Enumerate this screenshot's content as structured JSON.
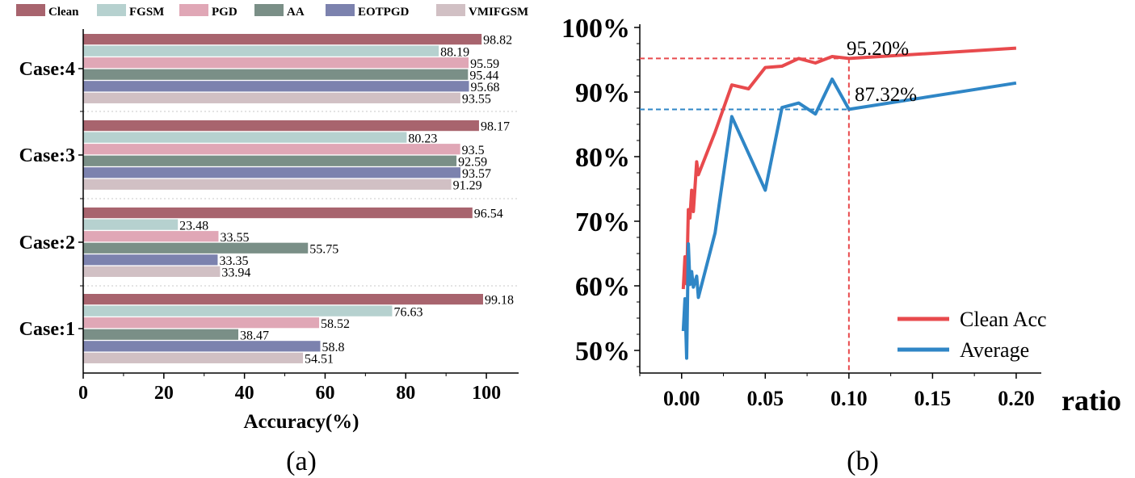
{
  "chart_data": [
    {
      "type": "bar",
      "orientation": "horizontal",
      "panel_label": "(a)",
      "categories": [
        "Case:4",
        "Case:3",
        "Case:2",
        "Case:1"
      ],
      "series": [
        {
          "name": "Clean",
          "color": "#a8646e",
          "values": [
            98.82,
            98.17,
            96.54,
            99.18
          ],
          "labels": [
            "98.82",
            "98.17",
            "96.54",
            "99.18"
          ]
        },
        {
          "name": "FGSM",
          "color": "#b6d1cf",
          "values": [
            88.19,
            80.23,
            23.48,
            76.63
          ],
          "labels": [
            "88.19",
            "80.23",
            "23.48",
            "76.63"
          ]
        },
        {
          "name": "PGD",
          "color": "#e0a7b6",
          "values": [
            95.59,
            93.5,
            33.55,
            58.52
          ],
          "labels": [
            "95.59",
            "93.5",
            "33.55",
            "58.52"
          ]
        },
        {
          "name": "AA",
          "color": "#7a8f87",
          "values": [
            95.44,
            92.59,
            55.75,
            38.47
          ],
          "labels": [
            "95.44",
            "92.59",
            "55.75",
            "38.47"
          ]
        },
        {
          "name": "EOTPGD",
          "color": "#7c82ae",
          "values": [
            95.68,
            93.57,
            33.35,
            58.8
          ],
          "labels": [
            "95.68",
            "93.57",
            "33.35",
            "58.8"
          ]
        },
        {
          "name": "VMIFGSM",
          "color": "#d1c0c4",
          "values": [
            93.55,
            91.29,
            33.94,
            54.51
          ],
          "labels": [
            "93.55",
            "91.29",
            "33.94",
            "54.51"
          ]
        }
      ],
      "xlabel": "Accuracy(%)",
      "xlim": [
        0,
        108
      ],
      "xticks": [
        0,
        20,
        40,
        60,
        80,
        100
      ],
      "xtick_labels": [
        "0",
        "20",
        "40",
        "60",
        "80",
        "100"
      ],
      "legend_position": "top"
    },
    {
      "type": "line",
      "panel_label": "(b)",
      "xlabel": "ratio",
      "xlim": [
        -0.025,
        0.215
      ],
      "ylim": [
        0.465,
        1.005
      ],
      "xticks": [
        0.0,
        0.05,
        0.1,
        0.15,
        0.2
      ],
      "xtick_labels": [
        "0.00",
        "0.05",
        "0.10",
        "0.15",
        "0.20"
      ],
      "yticks": [
        0.5,
        0.6,
        0.7,
        0.8,
        0.9,
        1.0
      ],
      "ytick_labels": [
        "50%",
        "60%",
        "70%",
        "80%",
        "90%",
        "100%"
      ],
      "series": [
        {
          "name": "Clean Acc",
          "color": "#e84a4d",
          "x": [
            0.001,
            0.002,
            0.003,
            0.004,
            0.005,
            0.006,
            0.007,
            0.008,
            0.009,
            0.01,
            0.02,
            0.03,
            0.04,
            0.05,
            0.06,
            0.07,
            0.08,
            0.09,
            0.1,
            0.2
          ],
          "y": [
            0.595,
            0.645,
            0.603,
            0.718,
            0.705,
            0.748,
            0.715,
            0.752,
            0.792,
            0.772,
            0.838,
            0.911,
            0.905,
            0.938,
            0.94,
            0.952,
            0.945,
            0.955,
            0.952,
            0.968
          ]
        },
        {
          "name": "Average",
          "color": "#2f86c6",
          "x": [
            0.001,
            0.002,
            0.003,
            0.004,
            0.005,
            0.006,
            0.007,
            0.008,
            0.009,
            0.01,
            0.02,
            0.03,
            0.05,
            0.06,
            0.07,
            0.08,
            0.09,
            0.1,
            0.2
          ],
          "y": [
            0.53,
            0.58,
            0.488,
            0.665,
            0.602,
            0.622,
            0.598,
            0.606,
            0.615,
            0.582,
            0.682,
            0.862,
            0.748,
            0.876,
            0.883,
            0.866,
            0.92,
            0.8732,
            0.914
          ]
        }
      ],
      "reference_lines": [
        {
          "x": 0.1,
          "y": 0.952,
          "color": "#e84a4d"
        },
        {
          "x": 0.1,
          "y": 0.8732,
          "color": "#2f86c6"
        }
      ],
      "annotations": [
        "95.20%",
        "87.32%"
      ],
      "legend_position": "bottom-right"
    }
  ]
}
